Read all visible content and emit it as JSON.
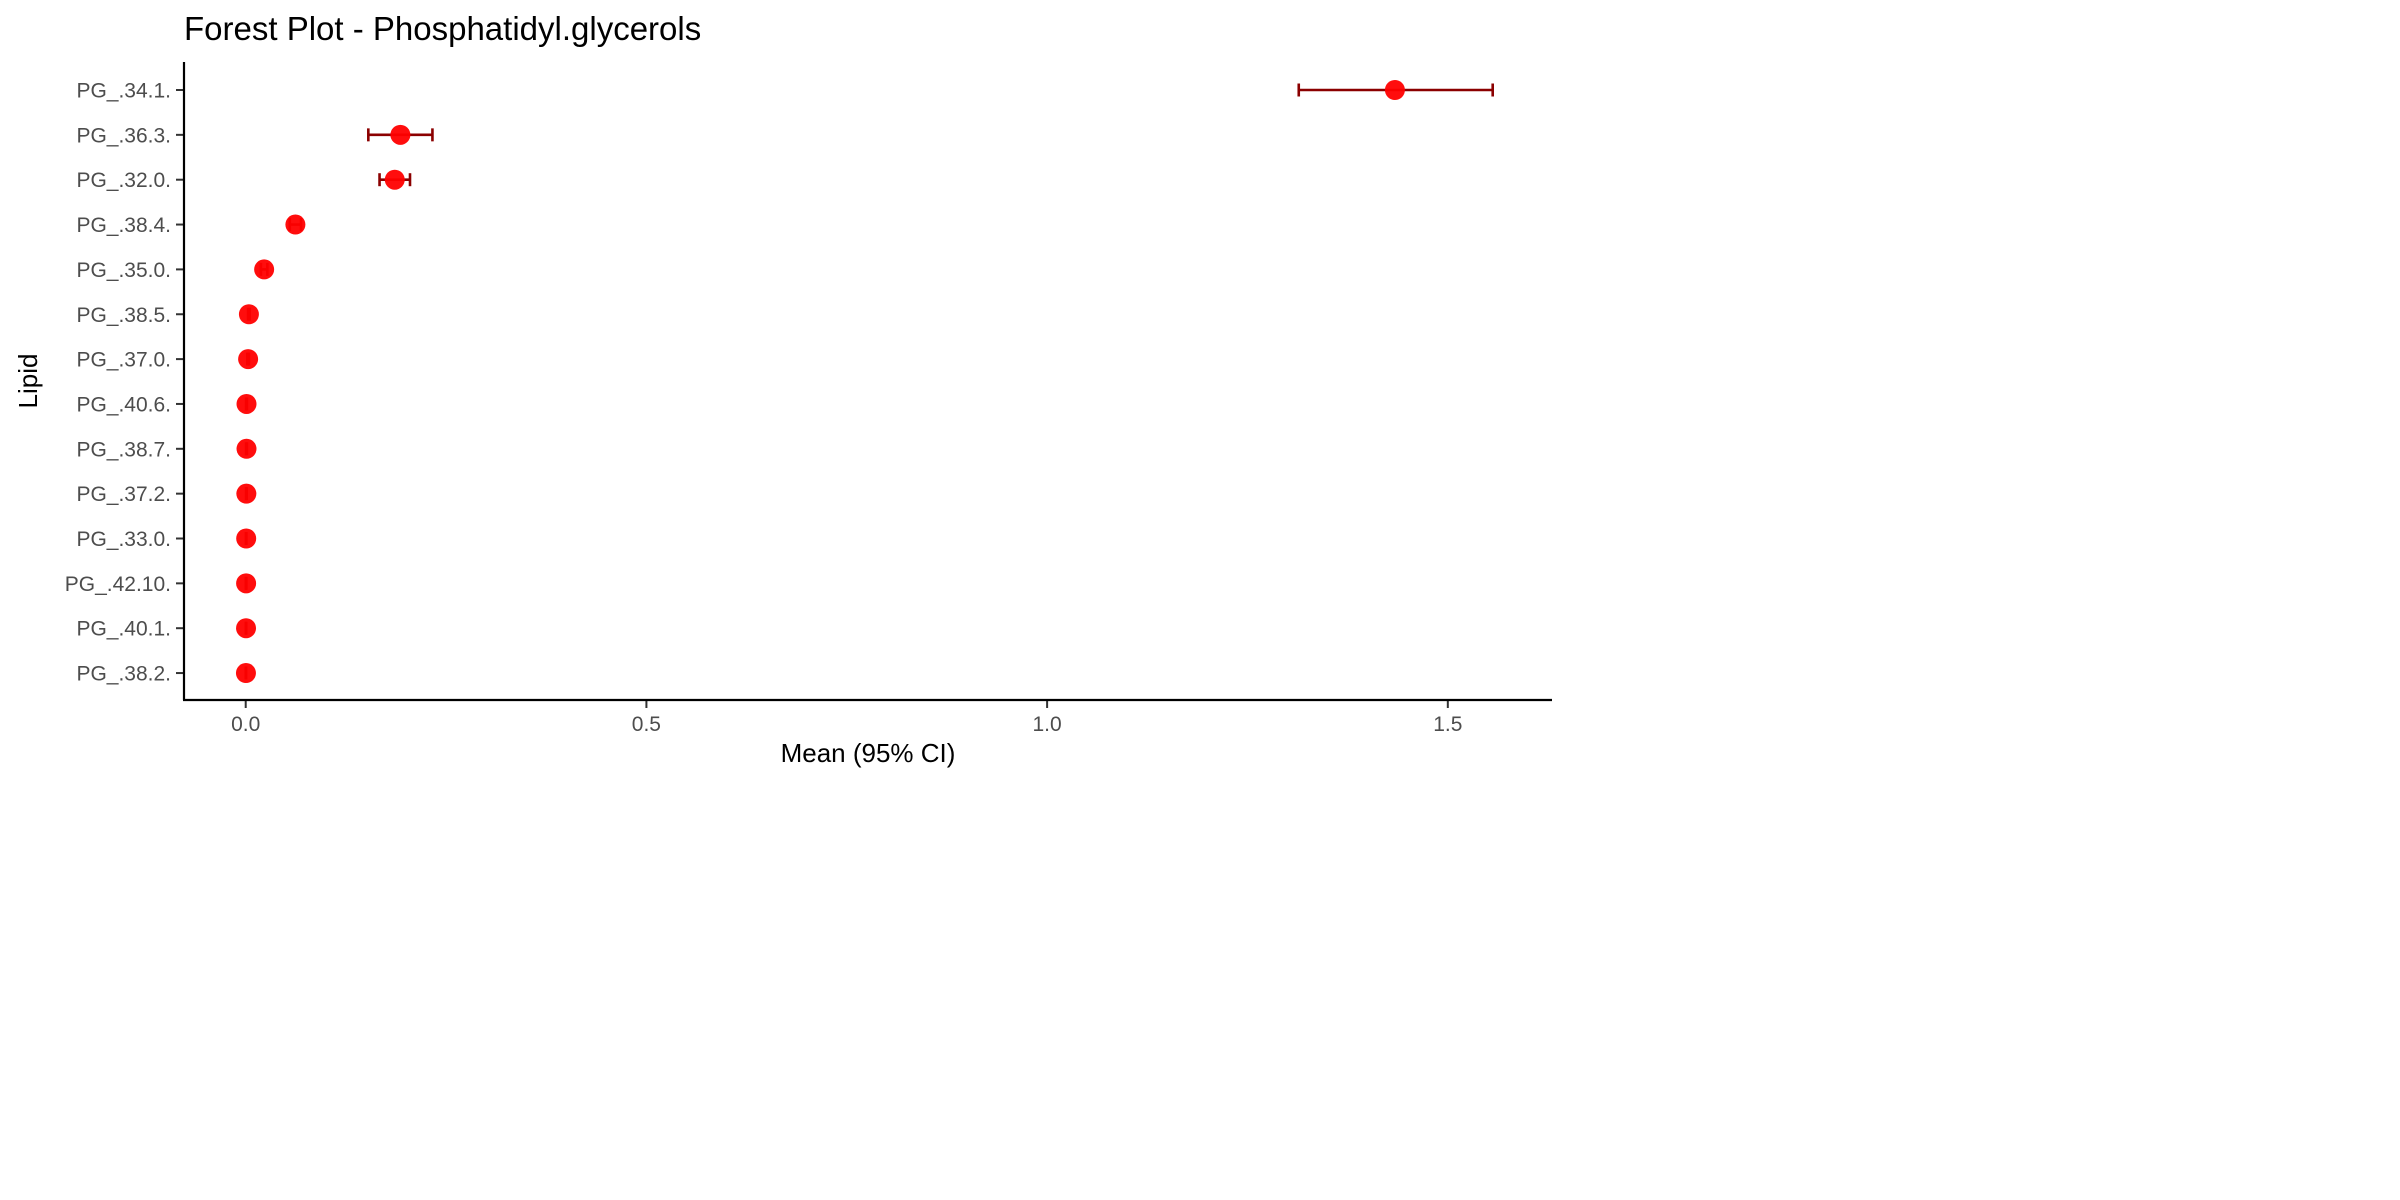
{
  "chart_data": {
    "type": "scatter",
    "subtype": "forest-plot",
    "title": "Forest Plot - Phosphatidyl.glycerols",
    "xlabel": "Mean (95% CI)",
    "ylabel": "Lipid",
    "xlim": [
      -0.077,
      1.63
    ],
    "x_ticks": [
      0,
      0.5,
      1.0,
      1.5
    ],
    "x_tick_labels": [
      "0.0",
      "0.5",
      "1.0",
      "1.5"
    ],
    "grid": false,
    "legend": "none",
    "colors": {
      "point": "#ff0000",
      "errorbar": "#8b0000",
      "axis": "#000000",
      "tick_label": "#4d4d4d"
    },
    "rows": [
      {
        "label": "PG_.34.1.",
        "mean": 1.434,
        "lower": 1.314,
        "upper": 1.556
      },
      {
        "label": "PG_.36.3.",
        "mean": 0.193,
        "lower": 0.153,
        "upper": 0.233
      },
      {
        "label": "PG_.32.0.",
        "mean": 0.186,
        "lower": 0.167,
        "upper": 0.205
      },
      {
        "label": "PG_.38.4.",
        "mean": 0.062,
        "lower": 0.055,
        "upper": 0.069
      },
      {
        "label": "PG_.35.0.",
        "mean": 0.023,
        "lower": 0.019,
        "upper": 0.027
      },
      {
        "label": "PG_.38.5.",
        "mean": 0.004,
        "lower": 0.003,
        "upper": 0.005
      },
      {
        "label": "PG_.37.0.",
        "mean": 0.003,
        "lower": 0.002,
        "upper": 0.004
      },
      {
        "label": "PG_.40.6.",
        "mean": 0.001,
        "lower": 0.0005,
        "upper": 0.0015
      },
      {
        "label": "PG_.38.7.",
        "mean": 0.001,
        "lower": 0.0005,
        "upper": 0.0015
      },
      {
        "label": "PG_.37.2.",
        "mean": 0.0008,
        "lower": 0.0004,
        "upper": 0.0012
      },
      {
        "label": "PG_.33.0.",
        "mean": 0.0006,
        "lower": 0.0003,
        "upper": 0.0009
      },
      {
        "label": "PG_.42.10.",
        "mean": 0.0005,
        "lower": 0.0002,
        "upper": 0.0008
      },
      {
        "label": "PG_.40.1.",
        "mean": 0.0004,
        "lower": 0.0002,
        "upper": 0.0006
      },
      {
        "label": "PG_.38.2.",
        "mean": 0.0003,
        "lower": 0.0001,
        "upper": 0.0005
      }
    ]
  }
}
